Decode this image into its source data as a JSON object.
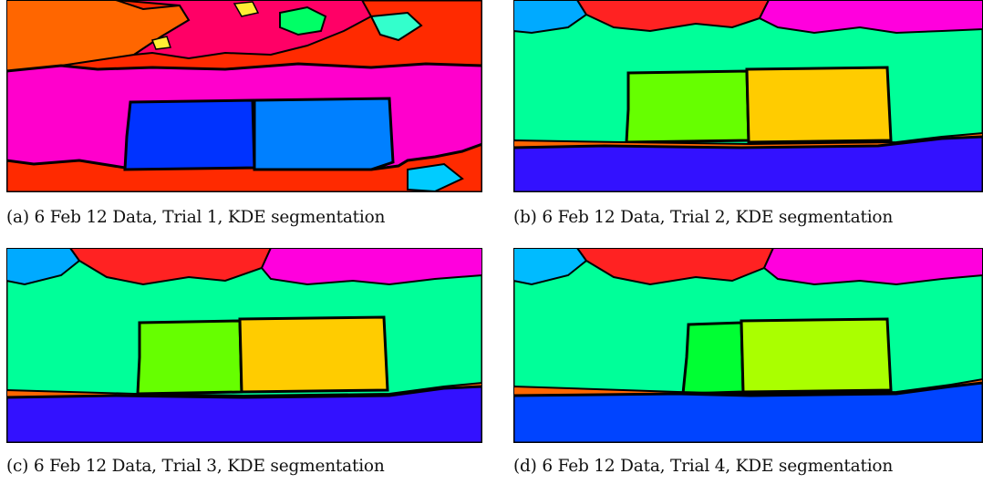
{
  "figure": {
    "panels": [
      {
        "id": "a",
        "caption": "(a) 6 Feb 12 Data, Trial 1, KDE segmentation",
        "region_colors": [
          "#ff2a00",
          "#ff6600",
          "#ff0066",
          "#ff00cc",
          "#0033ff",
          "#0080ff",
          "#00ff66",
          "#33ffcc",
          "#ffee33",
          "#00ccff"
        ],
        "segment_count": 10
      },
      {
        "id": "b",
        "caption": "(b) 6 Feb 12 Data, Trial 2, KDE segmentation",
        "region_colors": [
          "#00aaff",
          "#ff2222",
          "#ff00dd",
          "#00ff99",
          "#66ff00",
          "#ffcc00",
          "#ff6600",
          "#3311ff"
        ],
        "segment_count": 8
      },
      {
        "id": "c",
        "caption": "(c) 6 Feb 12 Data, Trial 3, KDE segmentation",
        "region_colors": [
          "#00aaff",
          "#ff2222",
          "#ff00dd",
          "#00ff99",
          "#66ff00",
          "#ffcc00",
          "#ff6600",
          "#3311ff"
        ],
        "segment_count": 8
      },
      {
        "id": "d",
        "caption": "(d) 6 Feb 12 Data, Trial 4, KDE segmentation",
        "region_colors": [
          "#00bbff",
          "#ff2222",
          "#ff00dd",
          "#00ff99",
          "#00ff33",
          "#aaff00",
          "#ff6600",
          "#0044ff"
        ],
        "segment_count": 8
      }
    ]
  }
}
